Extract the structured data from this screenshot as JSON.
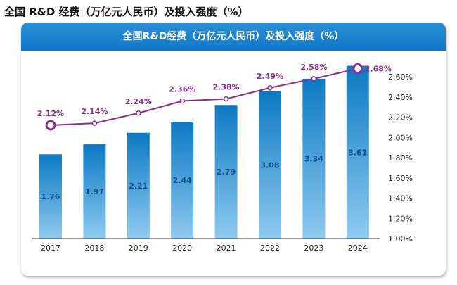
{
  "page_title": "全国 R&D 经费（万亿元人民币）及投入强度（%）",
  "chart_data": {
    "type": "bar+line",
    "title": "全国R&D经费（万亿元人民币）及投入强度（%）",
    "categories": [
      "2017",
      "2018",
      "2019",
      "2020",
      "2021",
      "2022",
      "2023",
      "2024"
    ],
    "series": [
      {
        "type": "bar",
        "axis": "left",
        "values": [
          1.76,
          1.97,
          2.21,
          2.44,
          2.79,
          3.08,
          3.34,
          3.61
        ],
        "labels": [
          "1.76",
          "1.97",
          "2.21",
          "2.44",
          "2.79",
          "3.08",
          "3.34",
          "3.61"
        ],
        "color": "#0b7ac4"
      },
      {
        "type": "line",
        "axis": "right",
        "values": [
          2.12,
          2.14,
          2.24,
          2.36,
          2.38,
          2.49,
          2.58,
          2.68
        ],
        "labels": [
          "2.12%",
          "2.14%",
          "2.24%",
          "2.36%",
          "2.38%",
          "2.49%",
          "2.58%",
          "2.68%"
        ],
        "color": "#8b2f8f"
      }
    ],
    "right_axis": {
      "range": [
        1.0,
        2.6
      ],
      "ticks": [
        "1.00%",
        "1.20%",
        "1.40%",
        "1.60%",
        "1.80%",
        "2.00%",
        "2.20%",
        "2.40%",
        "2.60%"
      ]
    },
    "left_axis_visible": false,
    "grid": false,
    "colors": {
      "header": "#1280cc",
      "bar_top": "#0b79c3",
      "bar_bottom": "#8fcaf0",
      "line": "#8b2f8f",
      "bar_label": "#0d4f8a"
    }
  }
}
